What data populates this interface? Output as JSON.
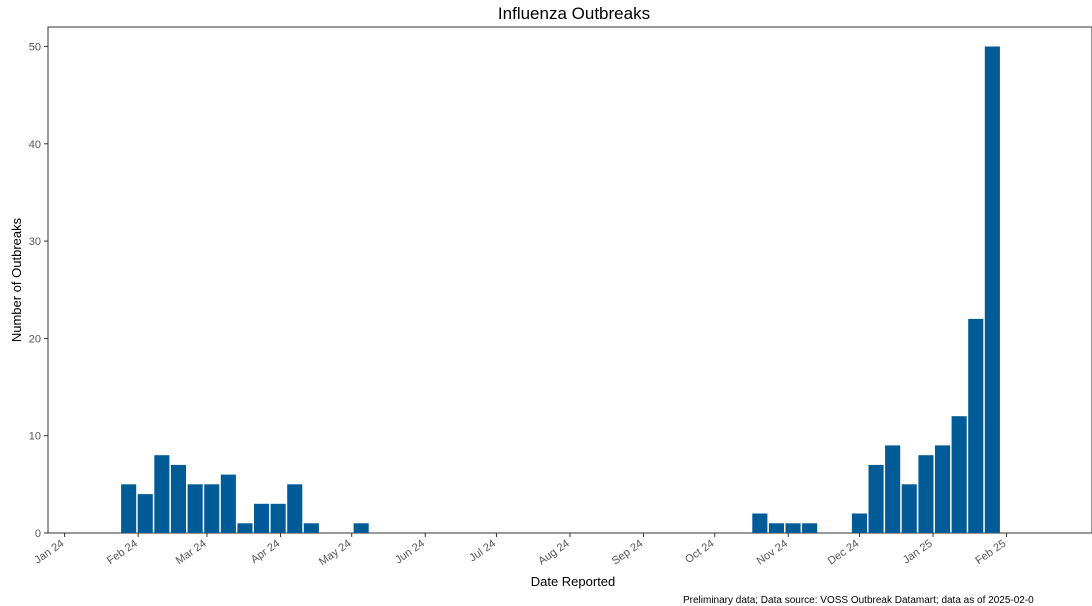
{
  "chart_data": {
    "type": "bar",
    "title": "Influenza Outbreaks",
    "xlabel": "Date Reported",
    "ylabel": "Number of Outbreaks",
    "caption": "Preliminary data; Data source: VOSS Outbreak Datamart; data as of 2025-02-0",
    "bar_color": "#005b96",
    "ylim": [
      0,
      52
    ],
    "yticks": [
      0,
      10,
      20,
      30,
      40,
      50
    ],
    "xlim": [
      "2023-12-25",
      "2025-03-09"
    ],
    "x_tick_labels": [
      {
        "date": "2024-01-01",
        "label": "Jan 24"
      },
      {
        "date": "2024-02-01",
        "label": "Feb 24"
      },
      {
        "date": "2024-03-01",
        "label": "Mar 24"
      },
      {
        "date": "2024-04-01",
        "label": "Apr 24"
      },
      {
        "date": "2024-05-01",
        "label": "May 24"
      },
      {
        "date": "2024-06-01",
        "label": "Jun 24"
      },
      {
        "date": "2024-07-01",
        "label": "Jul 24"
      },
      {
        "date": "2024-08-01",
        "label": "Aug 24"
      },
      {
        "date": "2024-09-01",
        "label": "Sep 24"
      },
      {
        "date": "2024-10-01",
        "label": "Oct 24"
      },
      {
        "date": "2024-11-01",
        "label": "Nov 24"
      },
      {
        "date": "2024-12-01",
        "label": "Dec 24"
      },
      {
        "date": "2025-01-01",
        "label": "Jan 25"
      },
      {
        "date": "2025-02-01",
        "label": "Feb 25"
      }
    ],
    "grid": false,
    "x": [
      "2024-01-28",
      "2024-02-04",
      "2024-02-11",
      "2024-02-18",
      "2024-02-25",
      "2024-03-03",
      "2024-03-10",
      "2024-03-17",
      "2024-03-24",
      "2024-03-31",
      "2024-04-07",
      "2024-04-14",
      "2024-05-05",
      "2024-10-20",
      "2024-10-27",
      "2024-11-03",
      "2024-11-10",
      "2024-12-01",
      "2024-12-08",
      "2024-12-15",
      "2024-12-22",
      "2024-12-29",
      "2025-01-05",
      "2025-01-12",
      "2025-01-19",
      "2025-01-26"
    ],
    "values": [
      5,
      4,
      8,
      7,
      5,
      5,
      6,
      1,
      3,
      3,
      5,
      1,
      1,
      2,
      1,
      1,
      1,
      2,
      7,
      9,
      5,
      8,
      9,
      12,
      22,
      50
    ]
  }
}
